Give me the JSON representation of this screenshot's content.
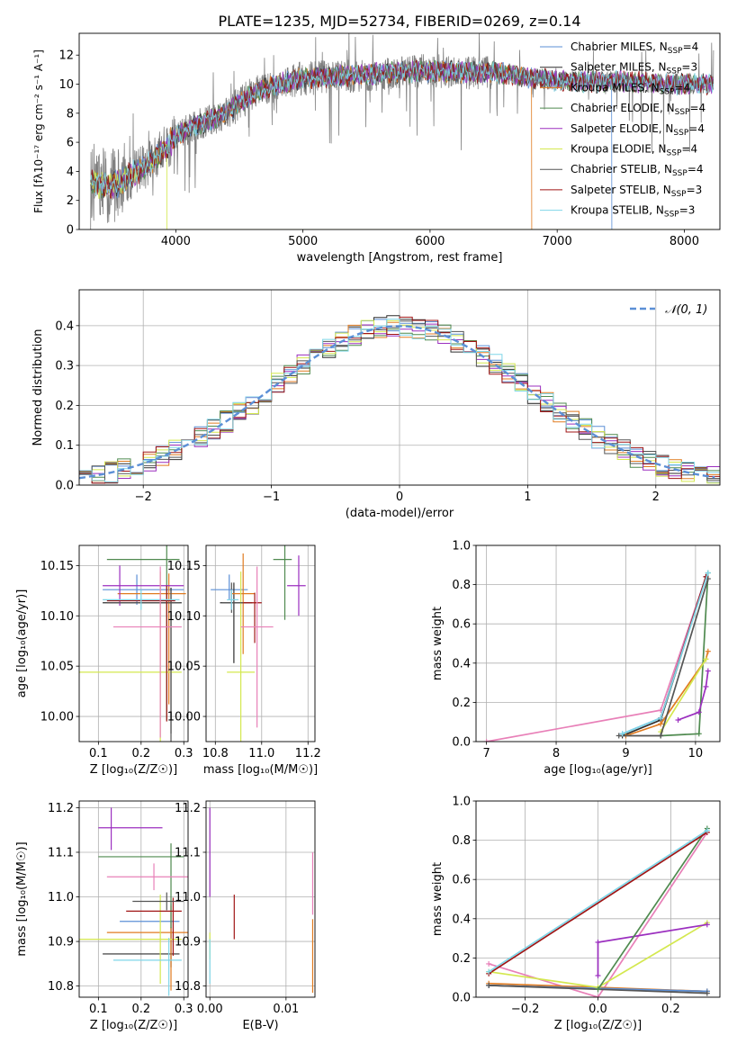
{
  "figure_title": "PLATE=1235, MJD=52734, FIBERID=0269, z=0.14",
  "colors": {
    "chabrier_miles": "#5b8fd6",
    "salpeter_miles": "#2f2f2f",
    "kroupa_miles": "#e07b20",
    "chabrier_elodie": "#4f8a4f",
    "salpeter_elodie": "#9b2fbf",
    "kroupa_elodie": "#d4e84f",
    "chabrier_stelib": "#555555",
    "salpeter_stelib": "#a01515",
    "kroupa_stelib": "#7fd6e8",
    "pink": "#e880b8",
    "gaussian": "#5b8fd6",
    "data": "#808080"
  },
  "legend_models": [
    {
      "label": "Chabrier MILES, N",
      "sub": "SSP",
      "suffix": "=4",
      "color": "#5b8fd6"
    },
    {
      "label": "Salpeter MILES, N",
      "sub": "SSP",
      "suffix": "=3",
      "color": "#2f2f2f"
    },
    {
      "label": "Kroupa MILES, N",
      "sub": "SSP",
      "suffix": "=4",
      "color": "#e07b20"
    },
    {
      "label": "Chabrier ELODIE, N",
      "sub": "SSP",
      "suffix": "=4",
      "color": "#4f8a4f"
    },
    {
      "label": "Salpeter ELODIE, N",
      "sub": "SSP",
      "suffix": "=4",
      "color": "#9b2fbf"
    },
    {
      "label": "Kroupa ELODIE, N",
      "sub": "SSP",
      "suffix": "=4",
      "color": "#d4e84f"
    },
    {
      "label": "Chabrier STELIB, N",
      "sub": "SSP",
      "suffix": "=4",
      "color": "#555555"
    },
    {
      "label": "Salpeter STELIB, N",
      "sub": "SSP",
      "suffix": "=3",
      "color": "#a01515"
    },
    {
      "label": "Kroupa STELIB, N",
      "sub": "SSP",
      "suffix": "=3",
      "color": "#7fd6e8"
    }
  ],
  "chart_data": [
    {
      "id": "spectrum",
      "type": "line",
      "xlabel": "wavelength [Angstrom, rest frame]",
      "ylabel": "Flux [fλ10⁻¹⁷ erg cm⁻² s⁻¹ A⁻¹]",
      "xlim": [
        3240,
        8280
      ],
      "ylim": [
        0,
        13.5
      ],
      "xticks": [
        4000,
        5000,
        6000,
        7000,
        8000
      ],
      "yticks": [
        0,
        2,
        4,
        6,
        8,
        10,
        12
      ],
      "continuum": {
        "x": [
          3330,
          3500,
          3600,
          3700,
          3800,
          3900,
          4000,
          4100,
          4200,
          4300,
          4400,
          4600,
          4800,
          5000,
          5200,
          5500,
          6000,
          6500,
          7000,
          7500,
          8000,
          8230
        ],
        "y": [
          3.2,
          3.0,
          3.4,
          4.0,
          4.6,
          5.4,
          6.4,
          6.9,
          7.3,
          7.6,
          8.0,
          9.3,
          10.0,
          10.4,
          10.5,
          10.7,
          10.9,
          10.8,
          10.2,
          10.2,
          10.0,
          10.0
        ]
      },
      "model_breaks": {
        "kroupa_elodie_end": 3930,
        "kroupa_miles_end": 6800,
        "chabrier_miles_end": 7430
      }
    },
    {
      "id": "residuals",
      "type": "line",
      "xlabel": "(data-model)/error",
      "ylabel": "Normed distribution",
      "xlim": [
        -2.5,
        2.5
      ],
      "ylim": [
        0,
        0.49
      ],
      "xticks": [
        -2,
        -1,
        0,
        1,
        2
      ],
      "yticks": [
        0.0,
        0.1,
        0.2,
        0.3,
        0.4
      ],
      "gaussian_label": "𝒩(0, 1)",
      "bin_width": 0.1
    },
    {
      "id": "age_vs_Z",
      "type": "scatter",
      "xlabel": "Z [log₁₀(Z/Z☉)]",
      "ylabel": "age  [log₁₀(age/yr)]",
      "xlim": [
        0.055,
        0.31
      ],
      "ylim": [
        9.975,
        10.17
      ],
      "xticks": [
        0.1,
        0.2,
        0.3
      ],
      "yticks": [
        10.0,
        10.05,
        10.1,
        10.15
      ],
      "points": [
        {
          "x": 0.19,
          "xerr": [
            0.08,
            0.11
          ],
          "y": 10.126,
          "yerr": [
            0.015,
            0.015
          ],
          "color": "#5b8fd6"
        },
        {
          "x": 0.27,
          "xerr": [
            0.16,
            0.025
          ],
          "y": 10.113,
          "yerr": [
            0.13,
            0.015
          ],
          "color": "#2f2f2f"
        },
        {
          "x": 0.265,
          "xerr": [
            0.12,
            0.04
          ],
          "y": 10.122,
          "yerr": [
            0.11,
            0.02
          ],
          "color": "#e07b20"
        },
        {
          "x": 0.26,
          "xerr": [
            0.14,
            0.03
          ],
          "y": 10.156,
          "yerr": [
            0.16,
            0.015
          ],
          "color": "#4f8a4f"
        },
        {
          "x": 0.15,
          "xerr": [
            0.04,
            0.15
          ],
          "y": 10.13,
          "yerr": [
            0.02,
            0.02
          ],
          "color": "#9b2fbf"
        },
        {
          "x": 0.245,
          "xerr": [
            0.19,
            0.05
          ],
          "y": 10.044,
          "yerr": [
            0.07,
            0.1
          ],
          "color": "#d4e84f"
        },
        {
          "x": 0.27,
          "xerr": [
            0.15,
            0.02
          ],
          "y": 10.113,
          "yerr": [
            0.14,
            0.01
          ],
          "color": "#555555"
        },
        {
          "x": 0.26,
          "xerr": [
            0.14,
            0.02
          ],
          "y": 10.115,
          "yerr": [
            0.12,
            0.015
          ],
          "color": "#a01515"
        },
        {
          "x": 0.2,
          "xerr": [
            0.09,
            0.09
          ],
          "y": 10.116,
          "yerr": [
            0.01,
            0.01
          ],
          "color": "#7fd6e8"
        },
        {
          "x": 0.245,
          "xerr": [
            0.11,
            0.05
          ],
          "y": 10.089,
          "yerr": [
            0.11,
            0.06
          ],
          "color": "#e880b8"
        }
      ]
    },
    {
      "id": "age_vs_mass",
      "type": "scatter",
      "xlabel": "mass [log₁₀(M/M☉)]",
      "ylabel": "",
      "xlim": [
        10.76,
        11.23
      ],
      "ylim": [
        9.975,
        10.17
      ],
      "xticks": [
        10.8,
        11.0,
        11.2
      ],
      "yticks": [
        10.0,
        10.05,
        10.1,
        10.15
      ],
      "points": [
        {
          "x": 10.86,
          "xerr": [
            0.08,
            0.08
          ],
          "y": 10.126,
          "yerr": [
            0.01,
            0.015
          ],
          "color": "#5b8fd6"
        },
        {
          "x": 10.88,
          "xerr": [
            0.06,
            0.08
          ],
          "y": 10.113,
          "yerr": [
            0.06,
            0.02
          ],
          "color": "#2f2f2f"
        },
        {
          "x": 10.92,
          "xerr": [
            0.05,
            0.05
          ],
          "y": 10.122,
          "yerr": [
            0.06,
            0.04
          ],
          "color": "#e07b20"
        },
        {
          "x": 11.1,
          "xerr": [
            0.05,
            0.03
          ],
          "y": 10.156,
          "yerr": [
            0.06,
            0.02
          ],
          "color": "#4f8a4f"
        },
        {
          "x": 11.16,
          "xerr": [
            0.05,
            0.03
          ],
          "y": 10.13,
          "yerr": [
            0.03,
            0.03
          ],
          "color": "#9b2fbf"
        },
        {
          "x": 10.91,
          "xerr": [
            0.06,
            0.06
          ],
          "y": 10.044,
          "yerr": [
            0.07,
            0.1
          ],
          "color": "#d4e84f"
        },
        {
          "x": 10.87,
          "xerr": [
            0.04,
            0.05
          ],
          "y": 10.113,
          "yerr": [
            0.01,
            0.02
          ],
          "color": "#555555"
        },
        {
          "x": 10.97,
          "xerr": [
            0.05,
            0.03
          ],
          "y": 10.113,
          "yerr": [
            0.04,
            0.01
          ],
          "color": "#a01515"
        },
        {
          "x": 10.87,
          "xerr": [
            0.02,
            0.03
          ],
          "y": 10.116,
          "yerr": [
            0.01,
            0.01
          ],
          "color": "#7fd6e8"
        },
        {
          "x": 10.98,
          "xerr": [
            0.07,
            0.07
          ],
          "y": 10.089,
          "yerr": [
            0.1,
            0.06
          ],
          "color": "#e880b8"
        }
      ]
    },
    {
      "id": "massweight_vs_age",
      "type": "line",
      "xlabel": "age  [log₁₀(age/yr)]",
      "ylabel": "mass weight",
      "xlim": [
        6.85,
        10.35
      ],
      "ylim": [
        0,
        1.0
      ],
      "xticks": [
        7,
        8,
        9,
        10
      ],
      "yticks": [
        0.0,
        0.2,
        0.4,
        0.6,
        0.8,
        1.0
      ],
      "series": [
        {
          "color": "#e880b8",
          "x": [
            7.0,
            9.5,
            10.15
          ],
          "y": [
            0.0,
            0.16,
            0.84
          ]
        },
        {
          "color": "#5b8fd6",
          "x": [
            8.95,
            9.5,
            10.15
          ],
          "y": [
            0.04,
            0.12,
            0.84
          ]
        },
        {
          "color": "#2f2f2f",
          "x": [
            8.95,
            9.5,
            10.15
          ],
          "y": [
            0.03,
            0.11,
            0.84
          ]
        },
        {
          "color": "#e07b20",
          "x": [
            9.0,
            9.5,
            10.15,
            10.18
          ],
          "y": [
            0.03,
            0.09,
            0.42,
            0.46
          ]
        },
        {
          "color": "#4f8a4f",
          "x": [
            9.5,
            10.05,
            10.18
          ],
          "y": [
            0.03,
            0.04,
            0.86
          ]
        },
        {
          "color": "#9b2fbf",
          "x": [
            9.75,
            10.05,
            10.15,
            10.18
          ],
          "y": [
            0.11,
            0.15,
            0.28,
            0.36
          ]
        },
        {
          "color": "#d4e84f",
          "x": [
            9.5,
            10.15
          ],
          "y": [
            0.05,
            0.42
          ]
        },
        {
          "color": "#555555",
          "x": [
            8.9,
            9.5,
            10.18
          ],
          "y": [
            0.03,
            0.03,
            0.83
          ]
        },
        {
          "color": "#a01515",
          "x": [
            9.5,
            10.15
          ],
          "y": [
            0.12,
            0.84
          ]
        },
        {
          "color": "#7fd6e8",
          "x": [
            8.95,
            9.5,
            10.18
          ],
          "y": [
            0.04,
            0.12,
            0.86
          ]
        }
      ]
    },
    {
      "id": "mass_vs_Z",
      "type": "scatter",
      "xlabel": "Z [log₁₀(Z/Z☉)]",
      "ylabel": "mass [log₁₀(M/M☉)]",
      "xlim": [
        0.055,
        0.31
      ],
      "ylim": [
        10.775,
        11.215
      ],
      "xticks": [
        0.1,
        0.2,
        0.3
      ],
      "yticks": [
        10.8,
        10.9,
        11.0,
        11.1,
        11.2
      ],
      "points": [
        {
          "x": 0.27,
          "xerr": [
            0.12,
            0.02
          ],
          "y": 10.945,
          "yerr": [
            0.04,
            0.04
          ],
          "color": "#5b8fd6"
        },
        {
          "x": 0.27,
          "xerr": [
            0.16,
            0.02
          ],
          "y": 10.872,
          "yerr": [
            0.03,
            0.06
          ],
          "color": "#2f2f2f"
        },
        {
          "x": 0.27,
          "xerr": [
            0.15,
            0.04
          ],
          "y": 10.92,
          "yerr": [
            0.13,
            0.06
          ],
          "color": "#e07b20"
        },
        {
          "x": 0.27,
          "xerr": [
            0.17,
            0.03
          ],
          "y": 11.09,
          "yerr": [
            0.16,
            0.03
          ],
          "color": "#4f8a4f"
        },
        {
          "x": 0.13,
          "xerr": [
            0.03,
            0.12
          ],
          "y": 11.155,
          "yerr": [
            0.05,
            0.045
          ],
          "color": "#9b2fbf"
        },
        {
          "x": 0.245,
          "xerr": [
            0.19,
            0.05
          ],
          "y": 10.905,
          "yerr": [
            0.1,
            0.1
          ],
          "color": "#d4e84f"
        },
        {
          "x": 0.275,
          "xerr": [
            0.11,
            0.02
          ],
          "y": 10.968,
          "yerr": [
            0.1,
            0.03
          ],
          "color": "#a01515"
        },
        {
          "x": 0.265,
          "xerr": [
            0.13,
            0.03
          ],
          "y": 10.858,
          "yerr": [
            0.08,
            0.05
          ],
          "color": "#7fd6e8"
        },
        {
          "x": 0.26,
          "xerr": [
            0.08,
            0.04
          ],
          "y": 10.99,
          "yerr": [
            0.02,
            0.02
          ],
          "color": "#555555"
        },
        {
          "x": 0.23,
          "xerr": [
            0.11,
            0.08
          ],
          "y": 11.045,
          "yerr": [
            0.03,
            0.03
          ],
          "color": "#e880b8"
        }
      ]
    },
    {
      "id": "mass_vs_ebv",
      "type": "scatter",
      "xlabel": "E(B-V)",
      "ylabel": "",
      "xlim": [
        -0.0005,
        0.0138
      ],
      "ylim": [
        10.775,
        11.215
      ],
      "xticks": [
        0.0,
        0.01
      ],
      "yticks": [
        10.8,
        10.9,
        11.0,
        11.1,
        11.2
      ],
      "points": [
        {
          "x": 0.0,
          "y": 11.1,
          "yerr": [
            0.1,
            0.1
          ],
          "color": "#9b2fbf"
        },
        {
          "x": 0.0,
          "y": 10.9,
          "yerr": [
            0.04,
            0.02
          ],
          "color": "#d4e84f"
        },
        {
          "x": 0.0,
          "y": 10.855,
          "yerr": [
            0.05,
            0.05
          ],
          "color": "#7fd6e8"
        },
        {
          "x": 0.0032,
          "y": 10.955,
          "yerr": [
            0.05,
            0.05
          ],
          "color": "#a01515"
        },
        {
          "x": 0.0135,
          "y": 10.9,
          "yerr": [
            0.115,
            0.05
          ],
          "color": "#e07b20"
        },
        {
          "x": 0.0135,
          "y": 11.0,
          "yerr": [
            0.04,
            0.1
          ],
          "color": "#e880b8"
        }
      ]
    },
    {
      "id": "massweight_vs_Z",
      "type": "line",
      "xlabel": "Z [log₁₀(Z/Z☉)]",
      "ylabel": "mass weight",
      "xlim": [
        -0.335,
        0.335
      ],
      "ylim": [
        0,
        1.0
      ],
      "xticks": [
        -0.2,
        0.0,
        0.2
      ],
      "yticks": [
        0.0,
        0.2,
        0.4,
        0.6,
        0.8,
        1.0
      ],
      "series": [
        {
          "color": "#e880b8",
          "x": [
            -0.3,
            0.0,
            0.3
          ],
          "y": [
            0.17,
            0.0,
            0.84
          ]
        },
        {
          "color": "#2f2f2f",
          "x": [
            -0.3,
            0.3
          ],
          "y": [
            0.06,
            0.03
          ]
        },
        {
          "color": "#e07b20",
          "x": [
            -0.3,
            0.3
          ],
          "y": [
            0.07,
            0.03
          ]
        },
        {
          "color": "#5b8fd6",
          "x": [
            -0.3,
            0.3
          ],
          "y": [
            0.06,
            0.03
          ]
        },
        {
          "color": "#555555",
          "x": [
            -0.3,
            0.3
          ],
          "y": [
            0.06,
            0.02
          ]
        },
        {
          "color": "#d4e84f",
          "x": [
            -0.3,
            0.0,
            0.3
          ],
          "y": [
            0.13,
            0.05,
            0.38
          ]
        },
        {
          "color": "#9b2fbf",
          "x": [
            0.0,
            0.0,
            0.3
          ],
          "y": [
            0.11,
            0.28,
            0.37
          ]
        },
        {
          "color": "#4f8a4f",
          "x": [
            0.0,
            0.3
          ],
          "y": [
            0.04,
            0.86
          ]
        },
        {
          "color": "#a01515",
          "x": [
            -0.3,
            0.3
          ],
          "y": [
            0.12,
            0.84
          ]
        },
        {
          "color": "#7fd6e8",
          "x": [
            -0.3,
            0.3
          ],
          "y": [
            0.13,
            0.85
          ]
        }
      ]
    }
  ]
}
